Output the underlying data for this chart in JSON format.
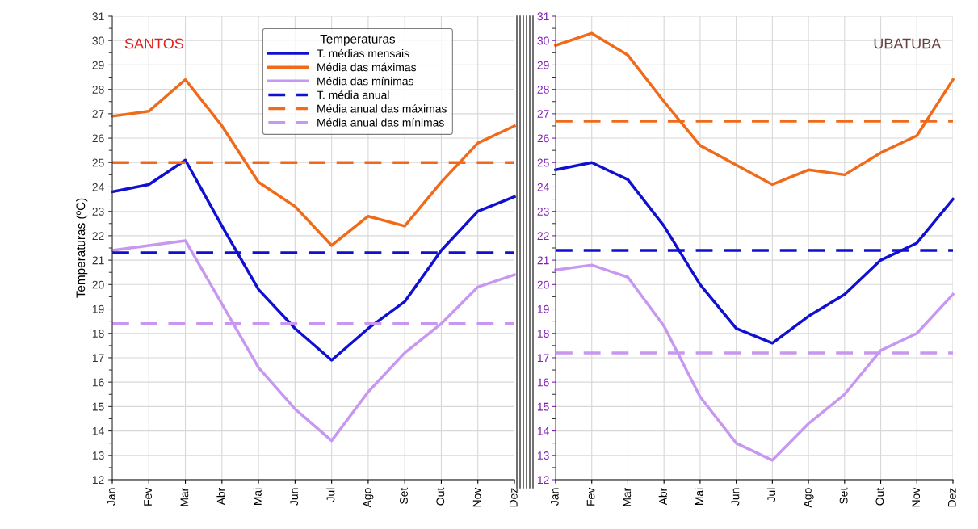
{
  "chart_data": [
    {
      "type": "line",
      "title": "SANTOS",
      "ylabel": "Temperaturas (ºC)",
      "legend_title": "Temperaturas",
      "legend": "top right",
      "grid": true,
      "ylim": [
        12,
        31
      ],
      "yticks": [
        12,
        13,
        14,
        15,
        16,
        17,
        18,
        19,
        20,
        21,
        22,
        23,
        24,
        25,
        26,
        27,
        28,
        29,
        30,
        31
      ],
      "categories": [
        "Jan",
        "Fev",
        "Mar",
        "Abr",
        "Mai",
        "Jun",
        "Jul",
        "Ago",
        "Set",
        "Out",
        "Nov",
        "Dez"
      ],
      "series": [
        {
          "name": "T. médias mensais",
          "color": "#1010d0",
          "line_style": "solid",
          "values": [
            23.8,
            24.1,
            25.1,
            22.4,
            19.8,
            18.2,
            16.9,
            18.2,
            19.3,
            21.4,
            23.0,
            23.6
          ]
        },
        {
          "name": "Média das máximas",
          "color": "#f06a1a",
          "line_style": "solid",
          "values": [
            26.9,
            27.1,
            28.4,
            26.5,
            24.2,
            23.2,
            21.6,
            22.8,
            22.4,
            24.2,
            25.8,
            26.5
          ]
        },
        {
          "name": "Média das mínimas",
          "color": "#c898f0",
          "line_style": "solid",
          "values": [
            21.4,
            21.6,
            21.8,
            19.2,
            16.6,
            14.9,
            13.6,
            15.6,
            17.2,
            18.4,
            19.9,
            20.4
          ]
        },
        {
          "name": "T. média anual",
          "color": "#1010d0",
          "line_style": "dashed",
          "values": [
            21.3,
            21.3,
            21.3,
            21.3,
            21.3,
            21.3,
            21.3,
            21.3,
            21.3,
            21.3,
            21.3,
            21.3
          ]
        },
        {
          "name": "Média anual das máximas",
          "color": "#f06a1a",
          "line_style": "dashed",
          "values": [
            25.0,
            25.0,
            25.0,
            25.0,
            25.0,
            25.0,
            25.0,
            25.0,
            25.0,
            25.0,
            25.0,
            25.0
          ]
        },
        {
          "name": "Média anual das mínimas",
          "color": "#c898f0",
          "line_style": "dashed",
          "values": [
            18.4,
            18.4,
            18.4,
            18.4,
            18.4,
            18.4,
            18.4,
            18.4,
            18.4,
            18.4,
            18.4,
            18.4
          ]
        }
      ]
    },
    {
      "type": "line",
      "title": "UBATUBA",
      "grid": true,
      "ylim": [
        12,
        31
      ],
      "yticks": [
        12,
        13,
        14,
        15,
        16,
        17,
        18,
        19,
        20,
        21,
        22,
        23,
        24,
        25,
        26,
        27,
        28,
        29,
        30,
        31
      ],
      "categories": [
        "Jan",
        "Fev",
        "Mar",
        "Abr",
        "Mai",
        "Jun",
        "Jul",
        "Ago",
        "Set",
        "Out",
        "Nov",
        "Dez"
      ],
      "series": [
        {
          "color": "#1010d0",
          "line_style": "solid",
          "values": [
            24.7,
            25.0,
            24.3,
            22.4,
            20.0,
            18.2,
            17.6,
            18.7,
            19.6,
            21.0,
            21.7,
            23.5
          ]
        },
        {
          "color": "#f06a1a",
          "line_style": "solid",
          "values": [
            29.8,
            30.3,
            29.4,
            27.5,
            25.7,
            24.9,
            24.1,
            24.7,
            24.5,
            25.4,
            26.1,
            28.4
          ]
        },
        {
          "color": "#c898f0",
          "line_style": "solid",
          "values": [
            20.6,
            20.8,
            20.3,
            18.3,
            15.4,
            13.5,
            12.8,
            14.3,
            15.5,
            17.3,
            18.0,
            19.6
          ]
        },
        {
          "color": "#1010d0",
          "line_style": "dashed",
          "values": [
            21.4,
            21.4,
            21.4,
            21.4,
            21.4,
            21.4,
            21.4,
            21.4,
            21.4,
            21.4,
            21.4,
            21.4
          ]
        },
        {
          "color": "#f06a1a",
          "line_style": "dashed",
          "values": [
            26.7,
            26.7,
            26.7,
            26.7,
            26.7,
            26.7,
            26.7,
            26.7,
            26.7,
            26.7,
            26.7,
            26.7
          ]
        },
        {
          "color": "#c898f0",
          "line_style": "dashed",
          "values": [
            17.2,
            17.2,
            17.2,
            17.2,
            17.2,
            17.2,
            17.2,
            17.2,
            17.2,
            17.2,
            17.2,
            17.2
          ]
        }
      ]
    }
  ]
}
